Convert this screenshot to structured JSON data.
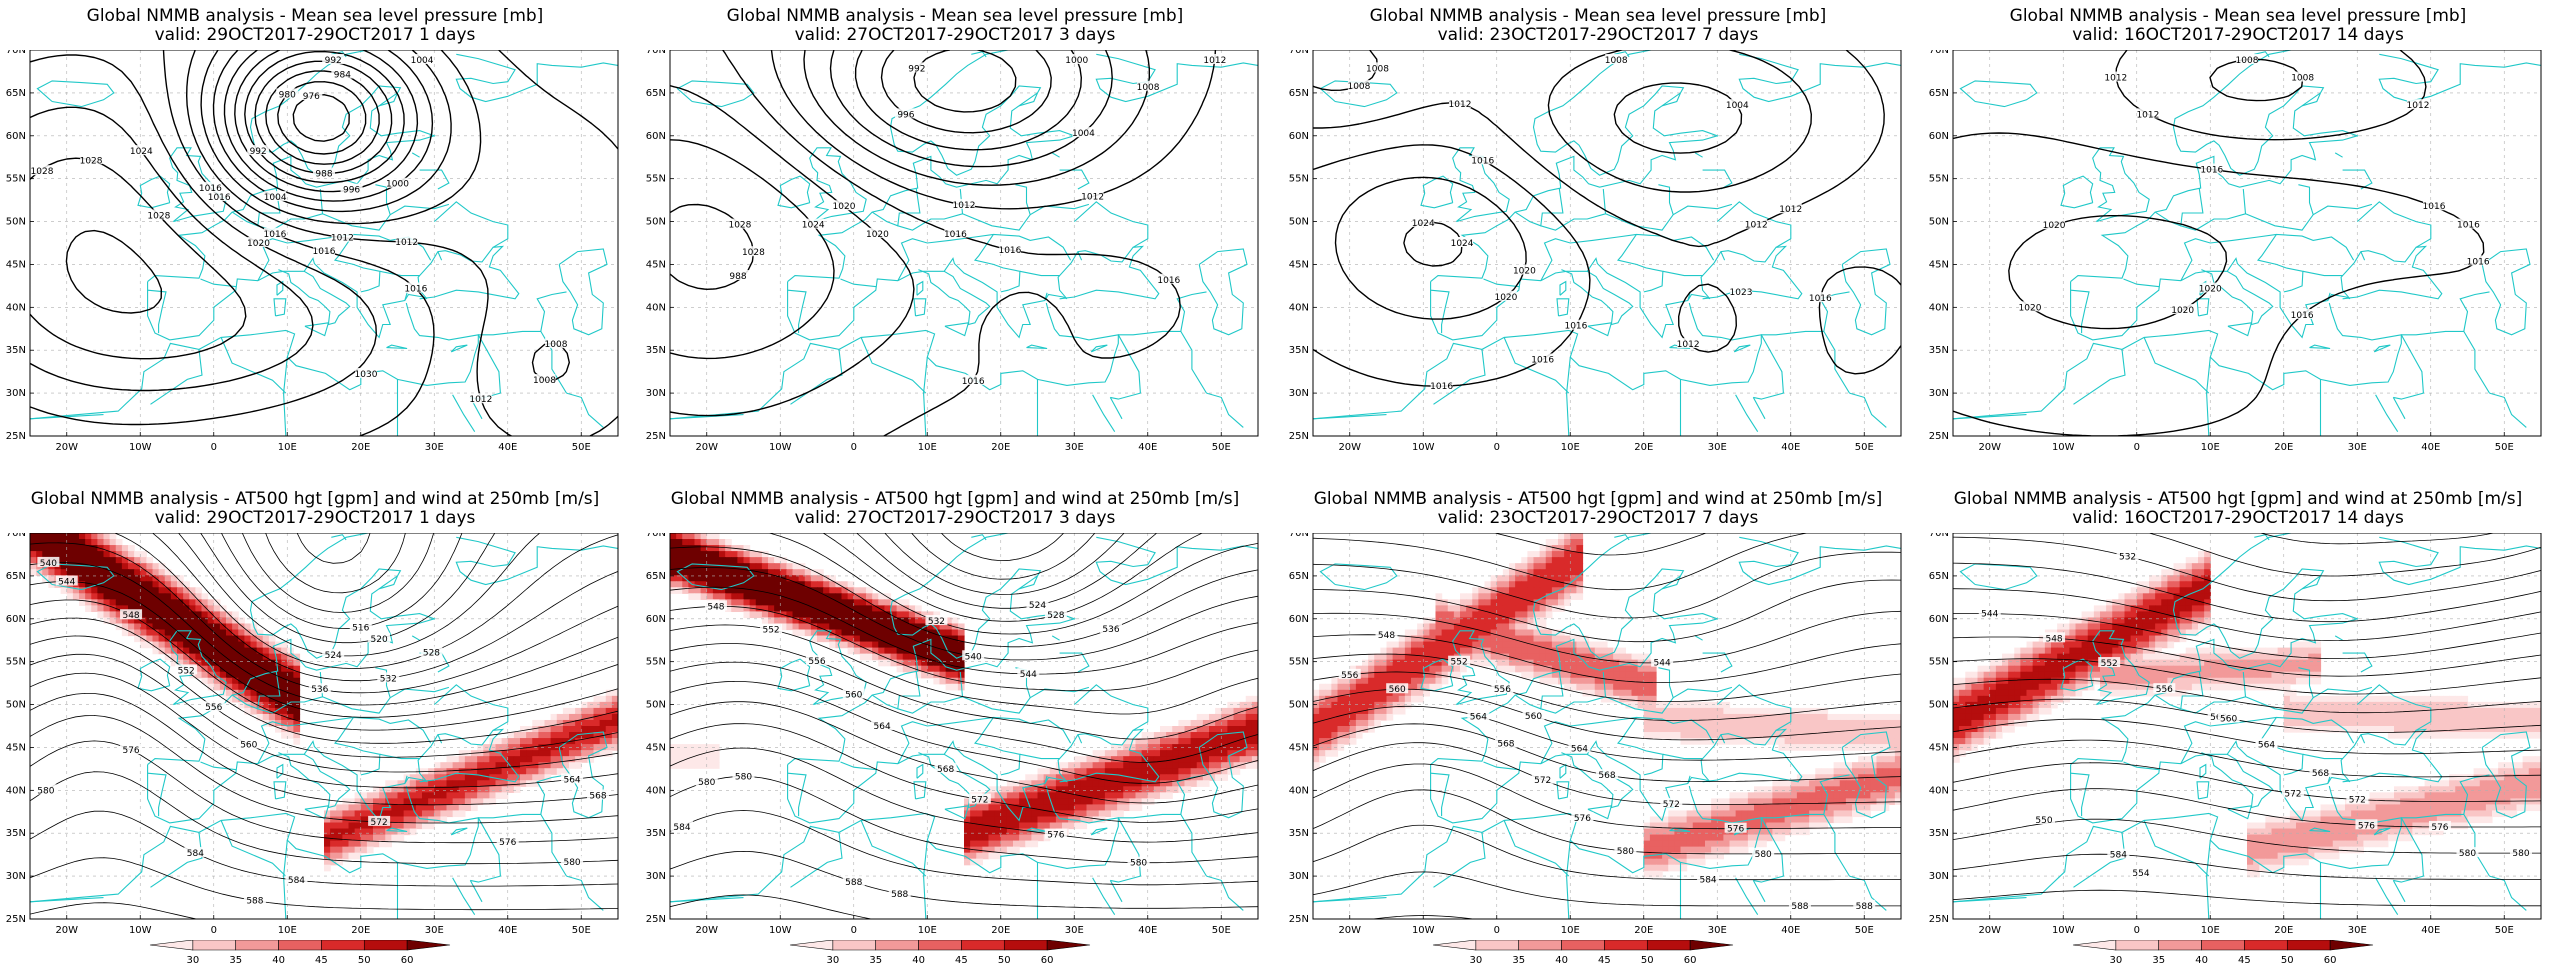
{
  "top_panels": [
    {
      "title": "Global NMMB analysis - Mean sea level pressure [mb]",
      "valid": "valid: 29OCT2017-29OCT2017   1 days",
      "labels": [
        "1028",
        "1028",
        "1024",
        "1028",
        "1016",
        "1016",
        "1020",
        "1016",
        "1012",
        "1012",
        "1004",
        "1008",
        "1008",
        "1012",
        "1016",
        "1000",
        "1004",
        "996",
        "992",
        "976",
        "984",
        "980",
        "988",
        "992",
        "1030",
        "1016"
      ]
    },
    {
      "title": "Global NMMB analysis - Mean sea level pressure [mb]",
      "valid": "valid: 27OCT2017-29OCT2017   3 days",
      "labels": [
        "1012",
        "1028",
        "1028",
        "1024",
        "1020",
        "1020",
        "1016",
        "1016",
        "1012",
        "1012",
        "1016",
        "1008",
        "1004",
        "1000",
        "996",
        "992",
        "988",
        "1016"
      ]
    },
    {
      "title": "Global NMMB analysis - Mean sea level pressure [mb]",
      "valid": "valid: 23OCT2017-29OCT2017   7 days",
      "labels": [
        "1008",
        "1012",
        "1016",
        "1024",
        "1023",
        "1024",
        "1020",
        "1020",
        "1024",
        "1016",
        "1016",
        "1012",
        "1016",
        "1012",
        "1008",
        "1004",
        "1008",
        "1016",
        "1012"
      ]
    },
    {
      "title": "Global NMMB analysis - Mean sea level pressure [mb]",
      "valid": "valid: 16OCT2017-29OCT2017   14 days",
      "labels": [
        "1008",
        "1012",
        "1008",
        "1012",
        "1016",
        "1020",
        "1020",
        "1020",
        "1016",
        "1016",
        "1016",
        "1012",
        "1020",
        "1016"
      ]
    }
  ],
  "bottom_panels": [
    {
      "title": "Global NMMB analysis - AT500 hgt [gpm] and wind at 250mb [m/s]",
      "valid": "valid: 29OCT2017-29OCT2017   1 days",
      "labels": [
        "544",
        "576",
        "580",
        "584",
        "588",
        "584",
        "516",
        "520",
        "524",
        "528",
        "532",
        "536",
        "540",
        "548",
        "552",
        "556",
        "560",
        "564",
        "568",
        "572",
        "576",
        "580"
      ]
    },
    {
      "title": "Global NMMB analysis - AT500 hgt [gpm] and wind at 250mb [m/s]",
      "valid": "valid: 27OCT2017-29OCT2017   3 days",
      "labels": [
        "580",
        "580",
        "584",
        "588",
        "588",
        "524",
        "528",
        "532",
        "536",
        "540",
        "544",
        "548",
        "552",
        "556",
        "560",
        "564",
        "568",
        "572",
        "576",
        "580"
      ]
    },
    {
      "title": "Global NMMB analysis - AT500 hgt [gpm] and wind at 250mb [m/s]",
      "valid": "valid: 23OCT2017-29OCT2017   7 days",
      "labels": [
        "556",
        "560",
        "564",
        "568",
        "572",
        "576",
        "580",
        "584",
        "588",
        "588",
        "544",
        "548",
        "552",
        "556",
        "560",
        "564",
        "568",
        "572",
        "576",
        "580"
      ]
    },
    {
      "title": "Global NMMB analysis - AT500 hgt [gpm] and wind at 250mb [m/s]",
      "valid": "valid: 16OCT2017-29OCT2017   14 days",
      "labels": [
        "544",
        "548",
        "552",
        "556",
        "560",
        "564",
        "568",
        "572",
        "576",
        "580",
        "584",
        "550",
        "554",
        "532",
        "560",
        "564",
        "572",
        "576",
        "580"
      ]
    }
  ],
  "axes": {
    "lat_ticks": [
      "70N",
      "65N",
      "60N",
      "55N",
      "50N",
      "45N",
      "40N",
      "35N",
      "30N",
      "25N"
    ],
    "lon_ticks": [
      "20W",
      "10W",
      "0",
      "10E",
      "20E",
      "30E",
      "40E",
      "50E"
    ]
  },
  "colorbar": {
    "ticks": [
      "30",
      "35",
      "40",
      "45",
      "50",
      "60"
    ],
    "colors": [
      "#fde8e8",
      "#f9c6c6",
      "#f29999",
      "#e86161",
      "#d92a2a",
      "#b50d0d",
      "#6e0000"
    ]
  },
  "colors": {
    "coast": "#20c8c8",
    "contour": "#000000",
    "grid": "#b0b0b0"
  }
}
